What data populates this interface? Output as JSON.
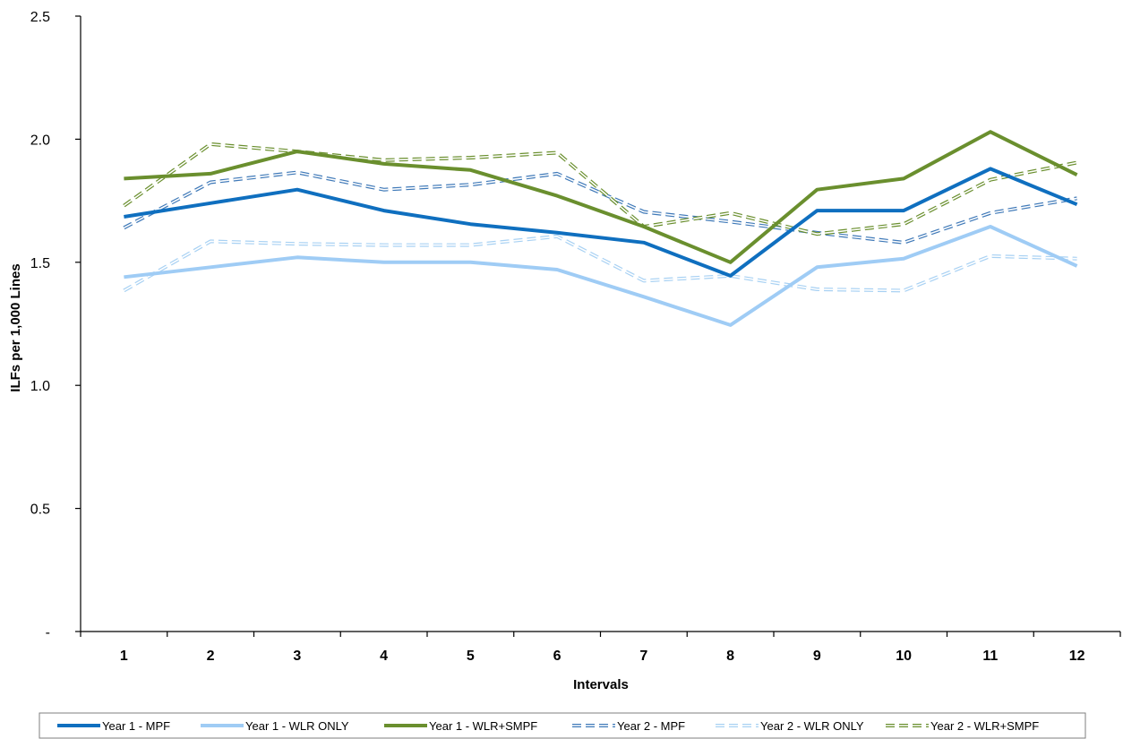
{
  "chart_data": {
    "type": "line",
    "xlabel": "Intervals",
    "ylabel": "ILFs per 1,000 Lines",
    "categories": [
      "1",
      "2",
      "3",
      "4",
      "5",
      "6",
      "7",
      "8",
      "9",
      "10",
      "11",
      "12"
    ],
    "ylim": [
      0,
      2.5
    ],
    "yticks": [
      {
        "value": 0,
        "label": "-"
      },
      {
        "value": 0.5,
        "label": "0.5"
      },
      {
        "value": 1.0,
        "label": "1.0"
      },
      {
        "value": 1.5,
        "label": "1.5"
      },
      {
        "value": 2.0,
        "label": "2.0"
      },
      {
        "value": 2.5,
        "label": "2.5"
      }
    ],
    "grid": false,
    "legend_position": "bottom",
    "series": [
      {
        "name": "Year 1 - MPF",
        "style": "solid",
        "color": "#0f6fbf",
        "values": [
          1.685,
          1.74,
          1.795,
          1.71,
          1.655,
          1.62,
          1.58,
          1.445,
          1.71,
          1.71,
          1.88,
          1.735
        ]
      },
      {
        "name": "Year 1 - WLR ONLY",
        "style": "solid",
        "color": "#9fccf5",
        "values": [
          1.44,
          1.48,
          1.52,
          1.5,
          1.5,
          1.47,
          1.36,
          1.245,
          1.48,
          1.515,
          1.645,
          1.485
        ]
      },
      {
        "name": "Year 1 - WLR+SMPF",
        "style": "solid",
        "color": "#6a8f2e",
        "values": [
          1.84,
          1.86,
          1.95,
          1.9,
          1.875,
          1.77,
          1.645,
          1.5,
          1.795,
          1.84,
          2.03,
          1.855
        ]
      },
      {
        "name": "Year 2 - MPF",
        "style": "dashed",
        "color": "#3f79b8",
        "values": [
          1.64,
          1.825,
          1.865,
          1.795,
          1.815,
          1.86,
          1.705,
          1.665,
          1.62,
          1.58,
          1.7,
          1.76
        ]
      },
      {
        "name": "Year 2 - WLR ONLY",
        "style": "dashed",
        "color": "#a8d1f3",
        "values": [
          1.385,
          1.585,
          1.575,
          1.57,
          1.57,
          1.605,
          1.425,
          1.445,
          1.39,
          1.385,
          1.525,
          1.515
        ]
      },
      {
        "name": "Year 2 - WLR+SMPF",
        "style": "dashed",
        "color": "#6a8f2e",
        "values": [
          1.73,
          1.98,
          1.95,
          1.915,
          1.925,
          1.945,
          1.645,
          1.7,
          1.615,
          1.655,
          1.835,
          1.905
        ]
      }
    ]
  }
}
